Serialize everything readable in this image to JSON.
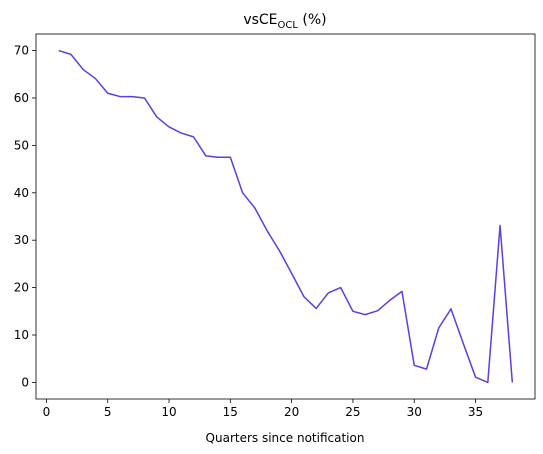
{
  "chart_data": {
    "type": "line",
    "title": {
      "main": "vsCE",
      "subscript": "OCL",
      "suffix": " (%)"
    },
    "xlabel": "Quarters since notification",
    "ylabel": "",
    "xlim": [
      -0.85,
      39.85
    ],
    "ylim": [
      -3.5,
      73.5
    ],
    "xticks": [
      0,
      5,
      10,
      15,
      20,
      25,
      30,
      35
    ],
    "yticks": [
      0,
      10,
      20,
      30,
      40,
      50,
      60,
      70
    ],
    "grid": false,
    "series": [
      {
        "color": "#5b3fe0",
        "x": [
          1,
          2,
          3,
          4,
          5,
          6,
          7,
          8,
          9,
          10,
          11,
          12,
          13,
          14,
          15,
          16,
          17,
          18,
          19,
          20,
          21,
          22,
          23,
          24,
          25,
          26,
          27,
          28,
          29,
          30,
          31,
          32,
          33,
          34,
          35,
          36,
          37,
          38
        ],
        "y": [
          70,
          69.2,
          66,
          64.1,
          61,
          60.3,
          60.3,
          60,
          56,
          53.9,
          52.6,
          51.8,
          47.8,
          47.5,
          47.5,
          40,
          36.8,
          32,
          27.8,
          23,
          18.1,
          15.6,
          18.9,
          20,
          15,
          14.3,
          15.1,
          17.3,
          19.2,
          3.6,
          2.8,
          11.5,
          15.5,
          8.2,
          1.1,
          0,
          33.1,
          0
        ]
      }
    ]
  }
}
